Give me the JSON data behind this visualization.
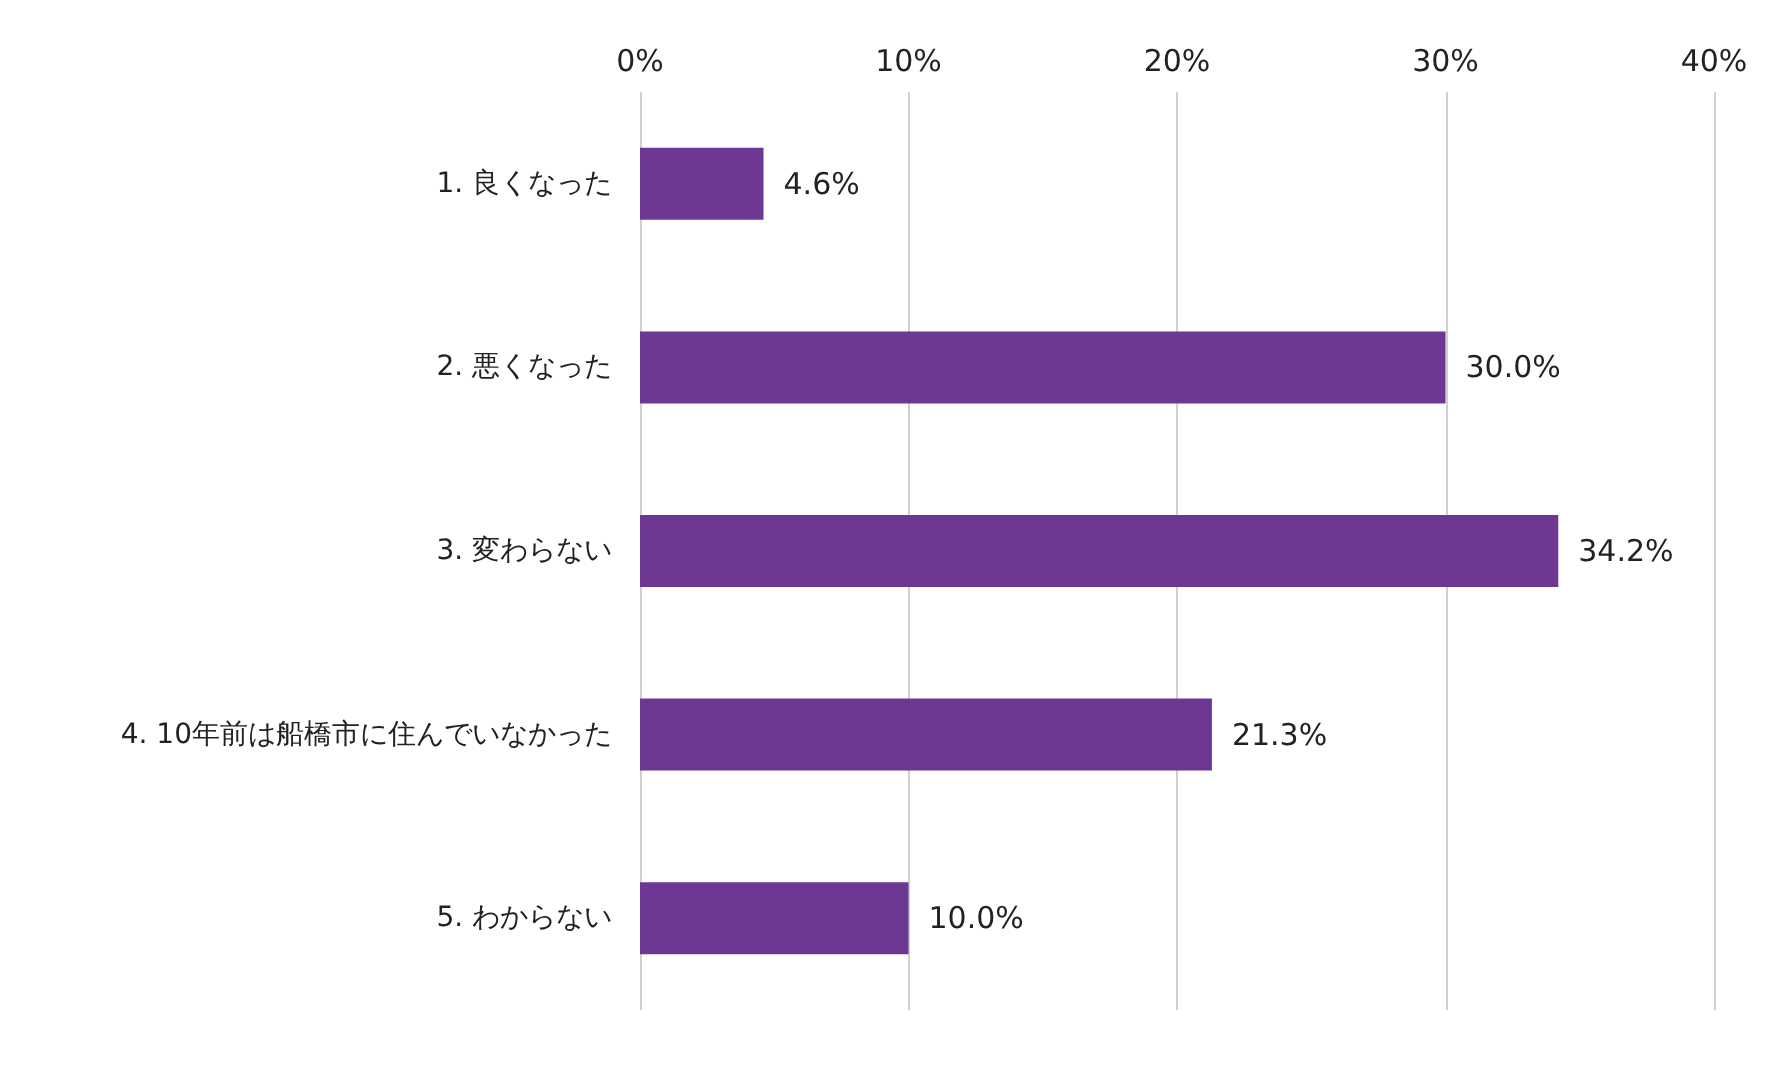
{
  "chart_data": {
    "type": "bar",
    "orientation": "horizontal",
    "categories": [
      "1. 良くなった",
      "2. 悪くなった",
      "3. 変わらない",
      "4. 10年前は船橋市に住んでいなかった",
      "5. わからない"
    ],
    "values": [
      4.6,
      30.0,
      34.2,
      21.3,
      10.0
    ],
    "value_labels": [
      "4.6%",
      "30.0%",
      "34.2%",
      "21.3%",
      "10.0%"
    ],
    "color": "#6c3893",
    "xlim": [
      0,
      40
    ],
    "xticks": [
      {
        "value": 0,
        "label": "0%"
      },
      {
        "value": 10,
        "label": "10%"
      },
      {
        "value": 20,
        "label": "20%"
      },
      {
        "value": 30,
        "label": "30%"
      },
      {
        "value": 40,
        "label": "40%"
      }
    ],
    "grid": "x"
  }
}
